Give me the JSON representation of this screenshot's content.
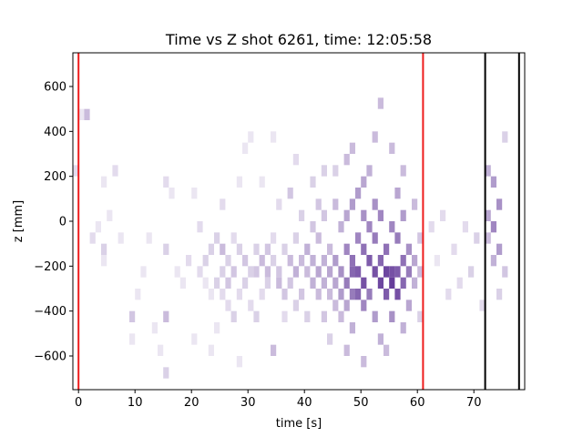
{
  "chart_data": {
    "type": "heatmap",
    "title": "Time vs Z shot 6261, time: 12:05:58",
    "xlabel": "time [s]",
    "ylabel": "z [mm]",
    "xlim": [
      -1,
      79
    ],
    "ylim": [
      -750,
      750
    ],
    "xticks": [
      0,
      10,
      20,
      30,
      40,
      50,
      60,
      70
    ],
    "yticks": [
      -600,
      -400,
      -200,
      0,
      200,
      400,
      600
    ],
    "grid": false,
    "colormap": "Purples",
    "vertical_lines": [
      {
        "x": 0,
        "color": "#ee1c1c"
      },
      {
        "x": 61,
        "color": "#ee1c1c"
      },
      {
        "x": 72,
        "color": "#000000"
      },
      {
        "x": 78,
        "color": "#000000"
      }
    ],
    "heatmap": {
      "x_bin_width": 1,
      "z_bin_width": 50,
      "note_intensity": "0-1 relative counts",
      "cells": [
        [
          -1,
          200,
          0.15
        ],
        [
          0,
          450,
          0.1
        ],
        [
          1,
          450,
          0.3
        ],
        [
          2,
          -100,
          0.15
        ],
        [
          3,
          -50,
          0.1
        ],
        [
          4,
          150,
          0.1
        ],
        [
          4,
          -150,
          0.2
        ],
        [
          4,
          -200,
          0.1
        ],
        [
          5,
          0,
          0.1
        ],
        [
          6,
          200,
          0.15
        ],
        [
          7,
          -100,
          0.1
        ],
        [
          9,
          -450,
          0.25
        ],
        [
          9,
          -550,
          0.1
        ],
        [
          10,
          -350,
          0.1
        ],
        [
          11,
          -250,
          0.1
        ],
        [
          12,
          -100,
          0.1
        ],
        [
          13,
          -500,
          0.1
        ],
        [
          14,
          -600,
          0.1
        ],
        [
          15,
          150,
          0.15
        ],
        [
          15,
          -450,
          0.3
        ],
        [
          15,
          -700,
          0.2
        ],
        [
          15,
          -150,
          0.2
        ],
        [
          16,
          100,
          0.1
        ],
        [
          17,
          -250,
          0.1
        ],
        [
          18,
          -300,
          0.1
        ],
        [
          19,
          -200,
          0.15
        ],
        [
          20,
          100,
          0.1
        ],
        [
          20,
          -550,
          0.1
        ],
        [
          21,
          -50,
          0.15
        ],
        [
          21,
          -250,
          0.15
        ],
        [
          22,
          -200,
          0.2
        ],
        [
          22,
          -300,
          0.1
        ],
        [
          23,
          -150,
          0.2
        ],
        [
          23,
          -350,
          0.1
        ],
        [
          23,
          -600,
          0.1
        ],
        [
          24,
          -100,
          0.2
        ],
        [
          24,
          -300,
          0.2
        ],
        [
          24,
          -500,
          0.1
        ],
        [
          25,
          -150,
          0.3
        ],
        [
          25,
          -250,
          0.2
        ],
        [
          25,
          -350,
          0.15
        ],
        [
          25,
          50,
          0.15
        ],
        [
          26,
          -200,
          0.2
        ],
        [
          26,
          -300,
          0.25
        ],
        [
          26,
          -400,
          0.15
        ],
        [
          27,
          -100,
          0.15
        ],
        [
          27,
          -250,
          0.25
        ],
        [
          27,
          -450,
          0.2
        ],
        [
          28,
          150,
          0.1
        ],
        [
          28,
          -150,
          0.2
        ],
        [
          28,
          -350,
          0.15
        ],
        [
          28,
          -650,
          0.1
        ],
        [
          29,
          300,
          0.1
        ],
        [
          29,
          -200,
          0.25
        ],
        [
          29,
          -300,
          0.2
        ],
        [
          30,
          350,
          0.1
        ],
        [
          30,
          -250,
          0.2
        ],
        [
          30,
          -400,
          0.15
        ],
        [
          31,
          -150,
          0.2
        ],
        [
          31,
          -250,
          0.25
        ],
        [
          31,
          -450,
          0.2
        ],
        [
          32,
          150,
          0.1
        ],
        [
          32,
          -200,
          0.3
        ],
        [
          32,
          -350,
          0.15
        ],
        [
          33,
          -150,
          0.25
        ],
        [
          33,
          -250,
          0.3
        ],
        [
          33,
          -300,
          0.2
        ],
        [
          34,
          350,
          0.1
        ],
        [
          34,
          -100,
          0.15
        ],
        [
          34,
          -200,
          0.2
        ],
        [
          34,
          -600,
          0.3
        ],
        [
          35,
          50,
          0.15
        ],
        [
          35,
          -250,
          0.25
        ],
        [
          35,
          -300,
          0.3
        ],
        [
          36,
          -150,
          0.2
        ],
        [
          36,
          -350,
          0.25
        ],
        [
          36,
          -450,
          0.15
        ],
        [
          37,
          100,
          0.25
        ],
        [
          37,
          -200,
          0.3
        ],
        [
          37,
          -300,
          0.25
        ],
        [
          38,
          250,
          0.15
        ],
        [
          38,
          -100,
          0.2
        ],
        [
          38,
          -250,
          0.35
        ],
        [
          38,
          -400,
          0.2
        ],
        [
          39,
          0,
          0.2
        ],
        [
          39,
          -200,
          0.3
        ],
        [
          39,
          -350,
          0.25
        ],
        [
          40,
          -150,
          0.35
        ],
        [
          40,
          -250,
          0.3
        ],
        [
          40,
          -450,
          0.2
        ],
        [
          41,
          150,
          0.2
        ],
        [
          41,
          -50,
          0.25
        ],
        [
          41,
          -200,
          0.35
        ],
        [
          41,
          -300,
          0.35
        ],
        [
          42,
          50,
          0.25
        ],
        [
          42,
          -100,
          0.3
        ],
        [
          42,
          -250,
          0.4
        ],
        [
          42,
          -350,
          0.3
        ],
        [
          43,
          200,
          0.2
        ],
        [
          43,
          0,
          0.25
        ],
        [
          43,
          -200,
          0.35
        ],
        [
          43,
          -300,
          0.35
        ],
        [
          43,
          -450,
          0.25
        ],
        [
          44,
          -150,
          0.3
        ],
        [
          44,
          -250,
          0.4
        ],
        [
          44,
          -350,
          0.3
        ],
        [
          44,
          -550,
          0.2
        ],
        [
          45,
          200,
          0.2
        ],
        [
          45,
          50,
          0.3
        ],
        [
          45,
          -200,
          0.45
        ],
        [
          45,
          -300,
          0.4
        ],
        [
          45,
          -400,
          0.3
        ],
        [
          46,
          -50,
          0.35
        ],
        [
          46,
          -250,
          0.5
        ],
        [
          46,
          -350,
          0.45
        ],
        [
          46,
          -450,
          0.3
        ],
        [
          47,
          250,
          0.3
        ],
        [
          47,
          0,
          0.4
        ],
        [
          47,
          -150,
          0.55
        ],
        [
          47,
          -300,
          0.6
        ],
        [
          47,
          -400,
          0.4
        ],
        [
          47,
          -600,
          0.3
        ],
        [
          48,
          300,
          0.3
        ],
        [
          48,
          50,
          0.45
        ],
        [
          48,
          -200,
          0.65
        ],
        [
          48,
          -250,
          0.7
        ],
        [
          48,
          -350,
          0.6
        ],
        [
          48,
          -500,
          0.35
        ],
        [
          49,
          100,
          0.45
        ],
        [
          49,
          -100,
          0.55
        ],
        [
          49,
          -250,
          0.75
        ],
        [
          49,
          -350,
          0.7
        ],
        [
          50,
          150,
          0.4
        ],
        [
          50,
          0,
          0.5
        ],
        [
          50,
          -150,
          0.65
        ],
        [
          50,
          -300,
          0.8
        ],
        [
          50,
          -400,
          0.55
        ],
        [
          50,
          -650,
          0.3
        ],
        [
          51,
          200,
          0.35
        ],
        [
          51,
          -50,
          0.55
        ],
        [
          51,
          -200,
          0.75
        ],
        [
          51,
          -350,
          0.6
        ],
        [
          52,
          350,
          0.3
        ],
        [
          52,
          50,
          0.5
        ],
        [
          52,
          -100,
          0.6
        ],
        [
          52,
          -250,
          0.8
        ],
        [
          52,
          -450,
          0.45
        ],
        [
          53,
          500,
          0.3
        ],
        [
          53,
          0,
          0.55
        ],
        [
          53,
          -200,
          0.7
        ],
        [
          53,
          -300,
          0.85
        ],
        [
          53,
          -550,
          0.35
        ],
        [
          54,
          -150,
          0.65
        ],
        [
          54,
          -250,
          0.85
        ],
        [
          54,
          -350,
          0.75
        ],
        [
          54,
          -600,
          0.3
        ],
        [
          55,
          300,
          0.3
        ],
        [
          55,
          -50,
          0.55
        ],
        [
          55,
          -250,
          0.8
        ],
        [
          55,
          -300,
          0.9
        ],
        [
          55,
          -450,
          0.5
        ],
        [
          56,
          100,
          0.4
        ],
        [
          56,
          -100,
          0.6
        ],
        [
          56,
          -250,
          0.75
        ],
        [
          56,
          -350,
          0.8
        ],
        [
          57,
          200,
          0.3
        ],
        [
          57,
          0,
          0.45
        ],
        [
          57,
          -200,
          0.65
        ],
        [
          57,
          -300,
          0.7
        ],
        [
          57,
          -500,
          0.35
        ],
        [
          58,
          -150,
          0.5
        ],
        [
          58,
          -250,
          0.6
        ],
        [
          58,
          -400,
          0.4
        ],
        [
          59,
          50,
          0.3
        ],
        [
          59,
          -200,
          0.4
        ],
        [
          59,
          -300,
          0.35
        ],
        [
          60,
          -100,
          0.25
        ],
        [
          60,
          -250,
          0.3
        ],
        [
          60,
          -450,
          0.2
        ],
        [
          62,
          -50,
          0.15
        ],
        [
          63,
          -200,
          0.1
        ],
        [
          64,
          0,
          0.15
        ],
        [
          65,
          -350,
          0.15
        ],
        [
          66,
          -150,
          0.15
        ],
        [
          67,
          -300,
          0.15
        ],
        [
          68,
          -50,
          0.15
        ],
        [
          69,
          -250,
          0.2
        ],
        [
          70,
          -100,
          0.2
        ],
        [
          71,
          -400,
          0.15
        ],
        [
          72,
          200,
          0.35
        ],
        [
          72,
          0,
          0.4
        ],
        [
          72,
          -100,
          0.3
        ],
        [
          73,
          150,
          0.45
        ],
        [
          73,
          -50,
          0.55
        ],
        [
          73,
          -200,
          0.35
        ],
        [
          74,
          50,
          0.5
        ],
        [
          74,
          -150,
          0.45
        ],
        [
          74,
          -350,
          0.2
        ],
        [
          75,
          -250,
          0.25
        ],
        [
          75,
          350,
          0.2
        ]
      ]
    }
  }
}
